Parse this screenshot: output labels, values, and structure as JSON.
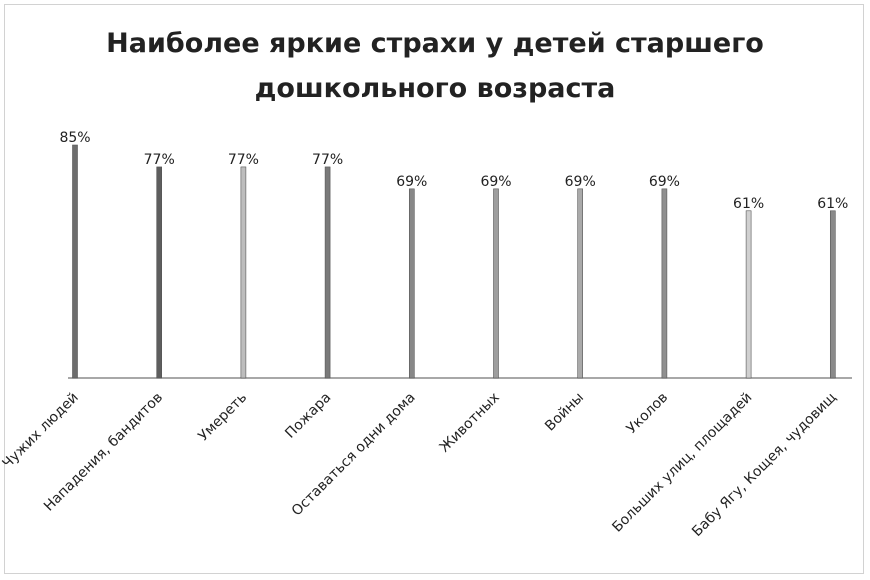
{
  "chart_data": {
    "type": "bar",
    "title_line1": "Наиболее яркие страхи у детей старшего",
    "title_line2": "дошкольного возраста",
    "categories": [
      "Чужих людей",
      "Нападения, бандитов",
      "Умереть",
      "Пожара",
      "Оставаться одни дома",
      "Животных",
      "Войны",
      "Уколов",
      "Больших улиц, площадей",
      "Бабу Ягу, Кощея, чудовищ"
    ],
    "values": [
      85,
      77,
      77,
      77,
      69,
      69,
      69,
      69,
      61,
      61
    ],
    "labels": [
      "85%",
      "77%",
      "77%",
      "77%",
      "69%",
      "69%",
      "69%",
      "69%",
      "61%",
      "61%"
    ],
    "bar_colors": [
      "#6d6d6d",
      "#5e5e5e",
      "#bdbdbd",
      "#7a7a7a",
      "#888888",
      "#9e9e9e",
      "#aaaaaa",
      "#8f8f8f",
      "#d0d0d0",
      "#8a8a8a"
    ],
    "ylim": [
      0,
      85
    ],
    "grid": false,
    "legend": "none"
  }
}
